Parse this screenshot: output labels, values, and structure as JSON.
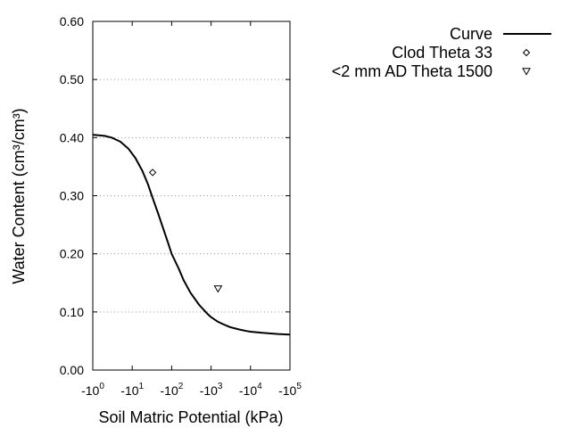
{
  "chart_data": {
    "type": "line",
    "xlabel": "Soil Matric Potential (kPa)",
    "ylabel": "Water Content (cm³/cm³)",
    "x_scale": "log",
    "xlim": [
      1,
      100000
    ],
    "ylim": [
      0,
      0.6
    ],
    "x_ticks": [
      {
        "value": 1,
        "base": "-10",
        "exp": "0"
      },
      {
        "value": 10,
        "base": "-10",
        "exp": "1"
      },
      {
        "value": 100,
        "base": "-10",
        "exp": "2"
      },
      {
        "value": 1000,
        "base": "-10",
        "exp": "3"
      },
      {
        "value": 10000,
        "base": "-10",
        "exp": "4"
      },
      {
        "value": 100000,
        "base": "-10",
        "exp": "5"
      }
    ],
    "y_ticks": [
      "0.00",
      "0.10",
      "0.20",
      "0.30",
      "0.40",
      "0.50",
      "0.60"
    ],
    "grid": "horizontal dotted",
    "legend_position": "top-right outside",
    "series": [
      {
        "name": "Curve",
        "style": "line",
        "color": "#000000",
        "x": [
          1,
          2,
          3,
          5,
          8,
          12,
          18,
          25,
          33,
          45,
          60,
          80,
          100,
          150,
          200,
          300,
          500,
          800,
          1000,
          1500,
          2000,
          3000,
          5000,
          8000,
          10000,
          20000,
          50000,
          100000
        ],
        "y": [
          0.405,
          0.403,
          0.4,
          0.393,
          0.381,
          0.365,
          0.343,
          0.32,
          0.296,
          0.27,
          0.245,
          0.22,
          0.2,
          0.175,
          0.155,
          0.133,
          0.112,
          0.097,
          0.091,
          0.083,
          0.079,
          0.074,
          0.07,
          0.067,
          0.066,
          0.064,
          0.062,
          0.061
        ]
      },
      {
        "name": "Clod Theta 33",
        "style": "marker",
        "marker": "diamond",
        "x": [
          33
        ],
        "y": [
          0.34
        ]
      },
      {
        "name": "<2 mm AD Theta 1500",
        "style": "marker",
        "marker": "triangle-down",
        "x": [
          1500
        ],
        "y": [
          0.14
        ]
      }
    ]
  }
}
